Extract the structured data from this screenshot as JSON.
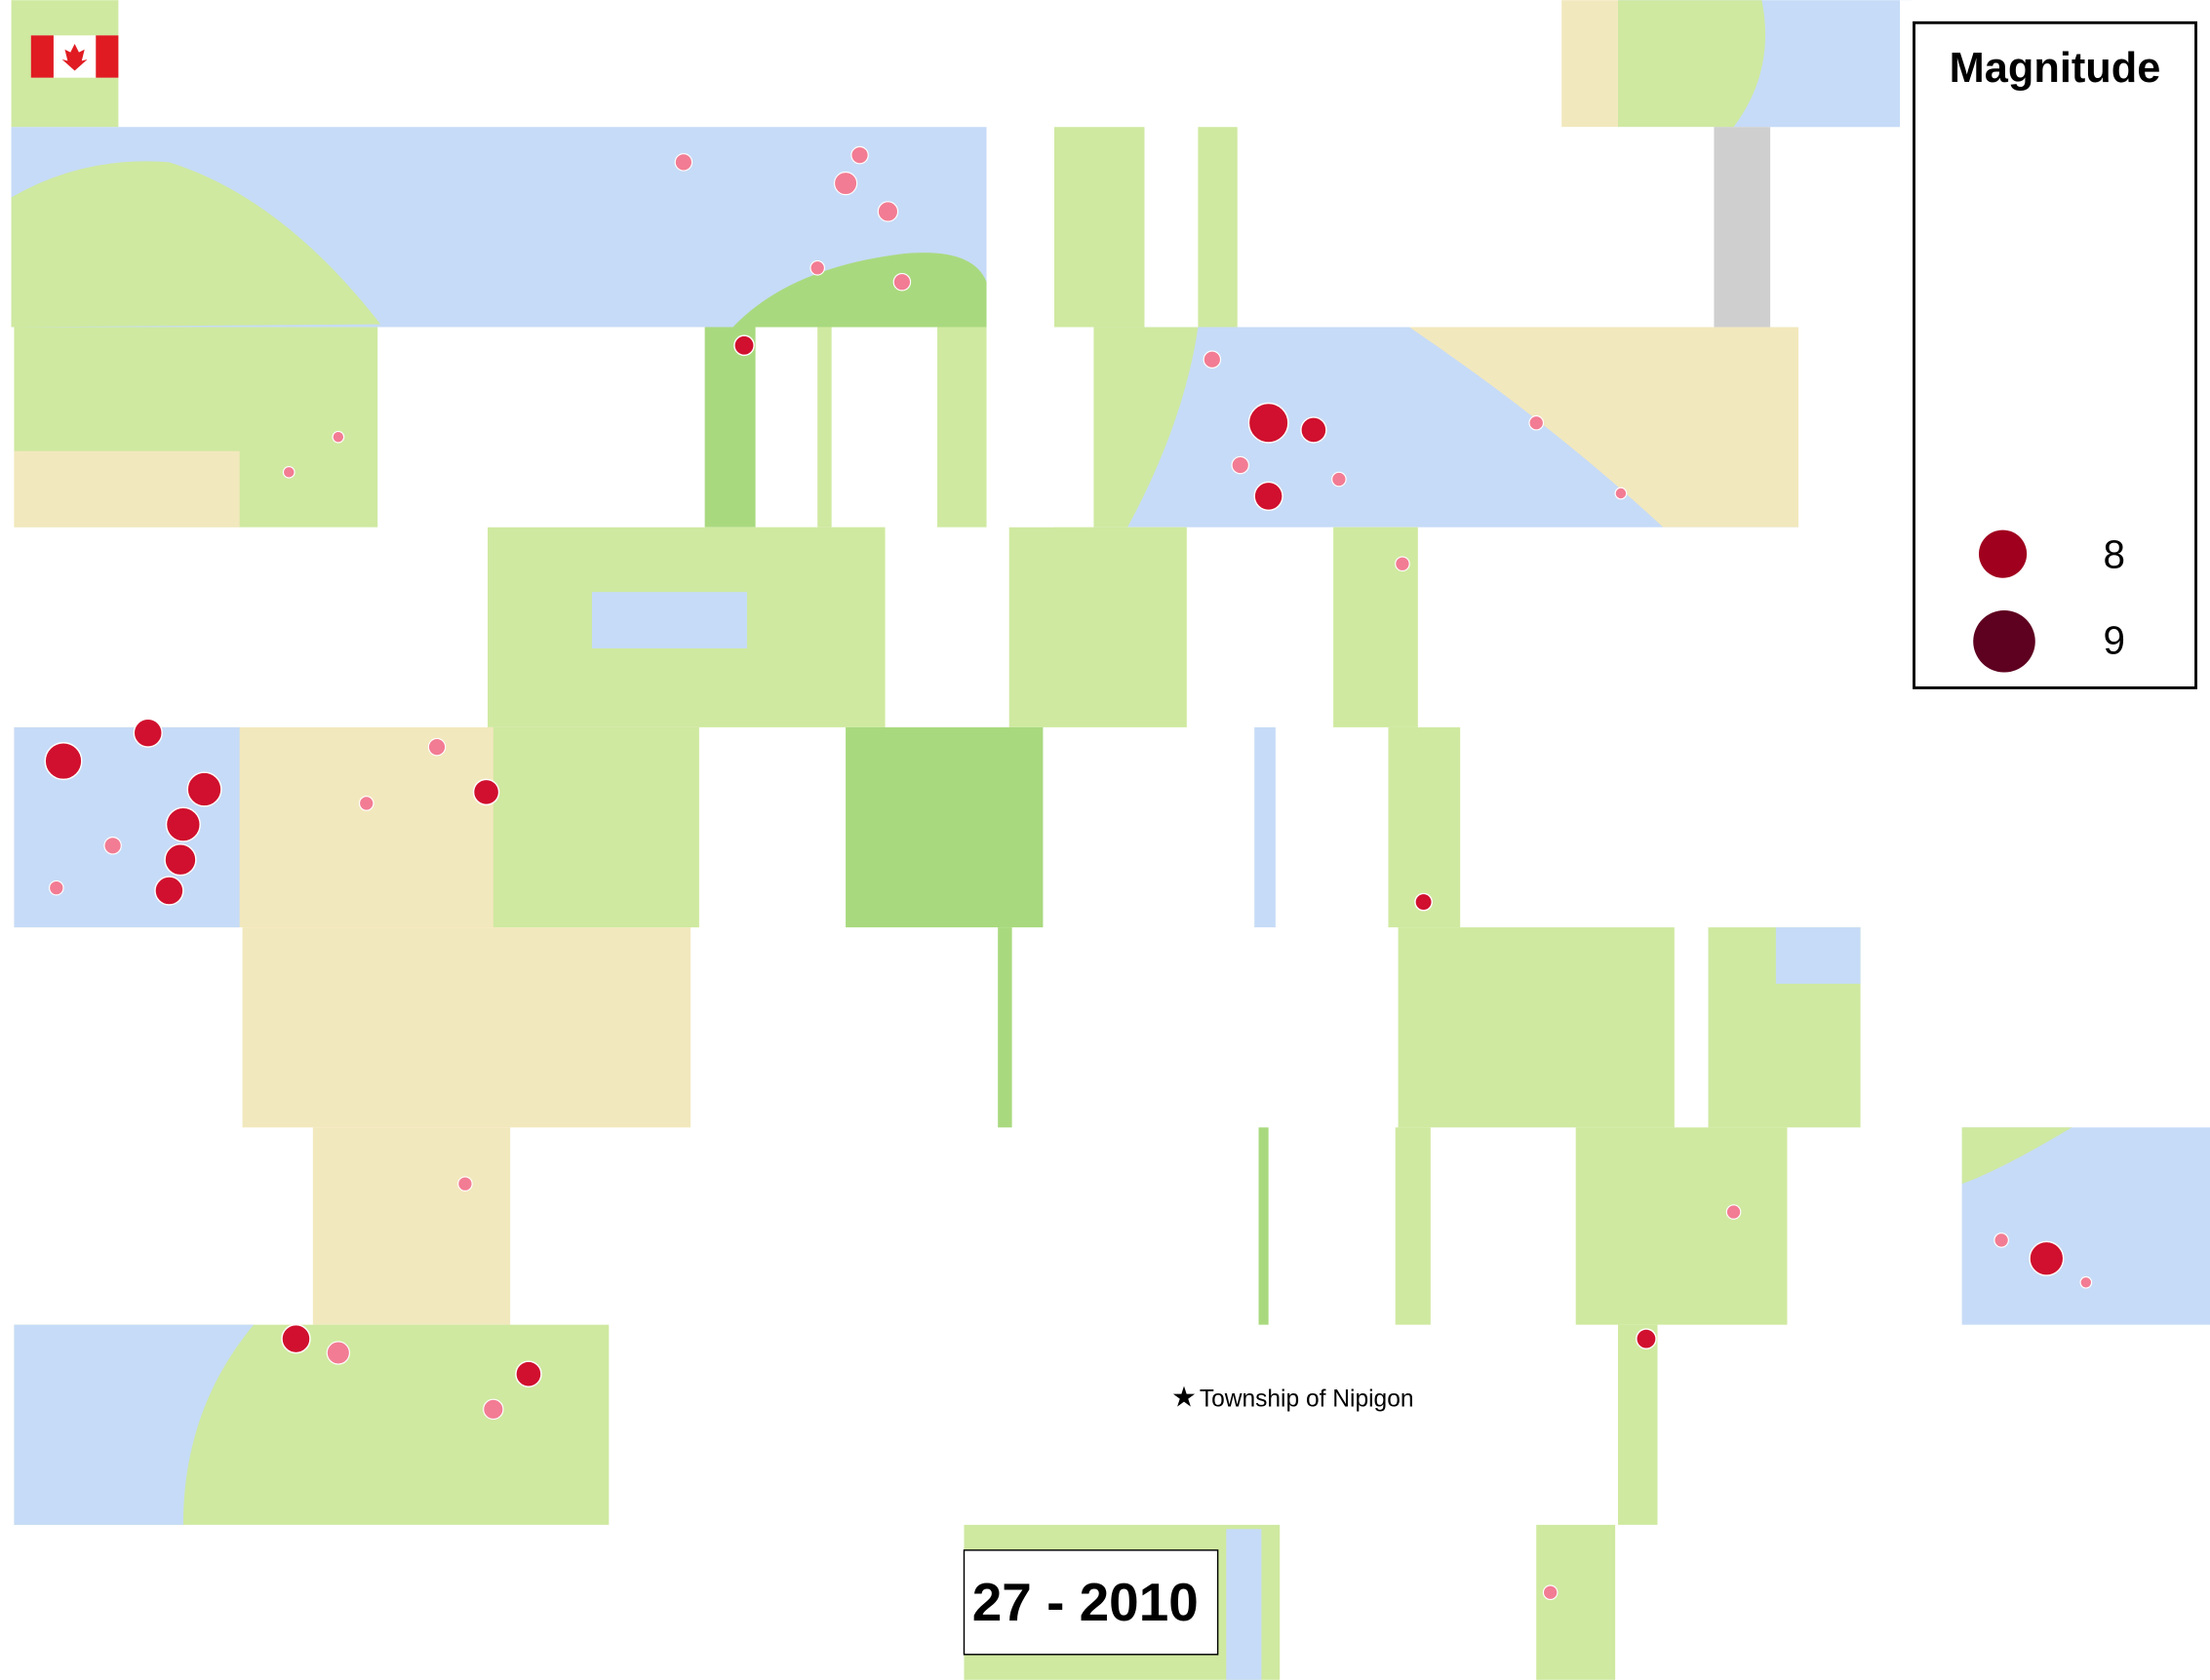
{
  "legend": {
    "title": "Magnitude",
    "items": [
      {
        "label": "8"
      },
      {
        "label": "9"
      }
    ]
  },
  "map": {
    "place_label": "Township of Nipigon",
    "date_range": "27 - 2010"
  }
}
